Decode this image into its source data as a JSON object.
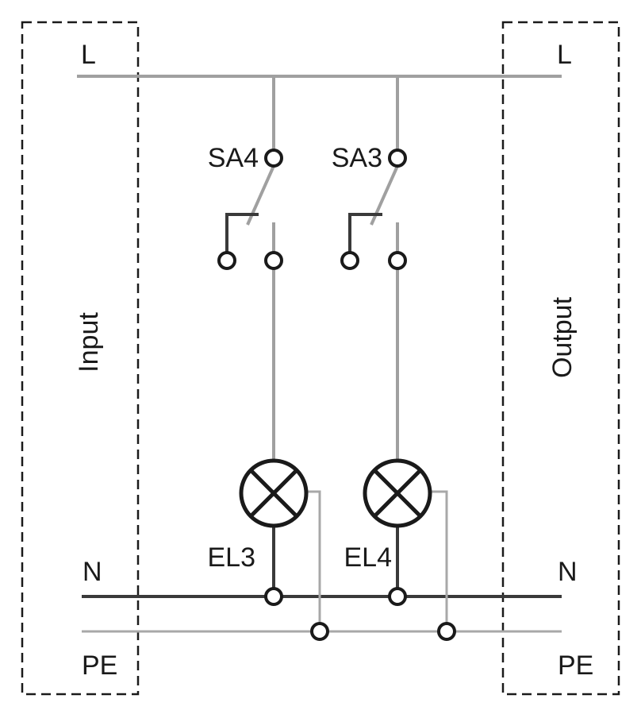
{
  "labels": {
    "line_left": "L",
    "line_right": "L",
    "neutral_left": "N",
    "neutral_right": "N",
    "pe_left": "PE",
    "pe_right": "PE",
    "input": "Input",
    "output": "Output",
    "switch_a": "SA4",
    "switch_b": "SA3",
    "lamp_a": "EL3",
    "lamp_b": "EL4"
  }
}
